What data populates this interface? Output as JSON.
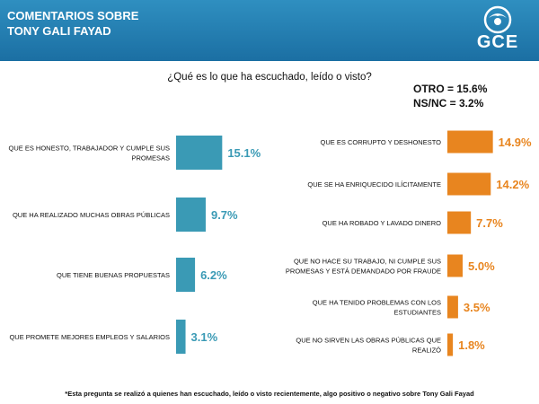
{
  "header": {
    "title_line1": "COMENTARIOS  SOBRE",
    "title_line2": "TONY GALI FAYAD",
    "logo_text": "GCE"
  },
  "question": "¿Qué es lo que ha escuchado, leído o visto?",
  "extra": {
    "otro": "OTRO = 15.6%",
    "nsnc": "NS/NC = 3.2%"
  },
  "colors": {
    "positive": "#3a9ab5",
    "negative": "#e8851f",
    "header": "#2380b5"
  },
  "chart_data": [
    {
      "type": "bar",
      "orientation": "horizontal",
      "name": "positive",
      "categories": [
        [
          "QUE ES HONESTO, TRABAJADOR Y CUMPLE SUS",
          "PROMESAS"
        ],
        [
          "QUE HA REALIZADO MUCHAS OBRAS PÚBLICAS"
        ],
        [
          "QUE TIENE BUENAS PROPUESTAS"
        ],
        [
          "QUE PROMETE MEJORES EMPLEOS Y SALARIOS"
        ]
      ],
      "values": [
        15.1,
        9.7,
        6.2,
        3.1
      ],
      "value_labels": [
        "15.1%",
        "9.7%",
        "6.2%",
        "3.1%"
      ],
      "color": "#3a9ab5"
    },
    {
      "type": "bar",
      "orientation": "horizontal",
      "name": "negative",
      "categories": [
        [
          "QUE ES CORRUPTO Y DESHONESTO"
        ],
        [
          "QUE SE HA ENRIQUECIDO ILÍCITAMENTE"
        ],
        [
          "QUE HA ROBADO Y LAVADO DINERO"
        ],
        [
          "QUE NO HACE SU TRABAJO, NI CUMPLE SUS",
          "PROMESAS Y ESTÁ DEMANDADO POR FRAUDE"
        ],
        [
          "QUE  HA TENIDO PROBLEMAS CON LOS",
          "ESTUDIANTES"
        ],
        [
          "QUE NO SIRVEN LAS OBRAS PÚBLICAS QUE",
          "REALIZÓ"
        ]
      ],
      "values": [
        14.9,
        14.2,
        7.7,
        5.0,
        3.5,
        1.8
      ],
      "value_labels": [
        "14.9%",
        "14.2%",
        "7.7%",
        "5.0%",
        "3.5%",
        "1.8%"
      ],
      "color": "#e8851f"
    }
  ],
  "footnote": "*Esta pregunta se realizó a quienes han escuchado, leído o visto recientemente, algo positivo o negativo sobre Tony Gali Fayad"
}
